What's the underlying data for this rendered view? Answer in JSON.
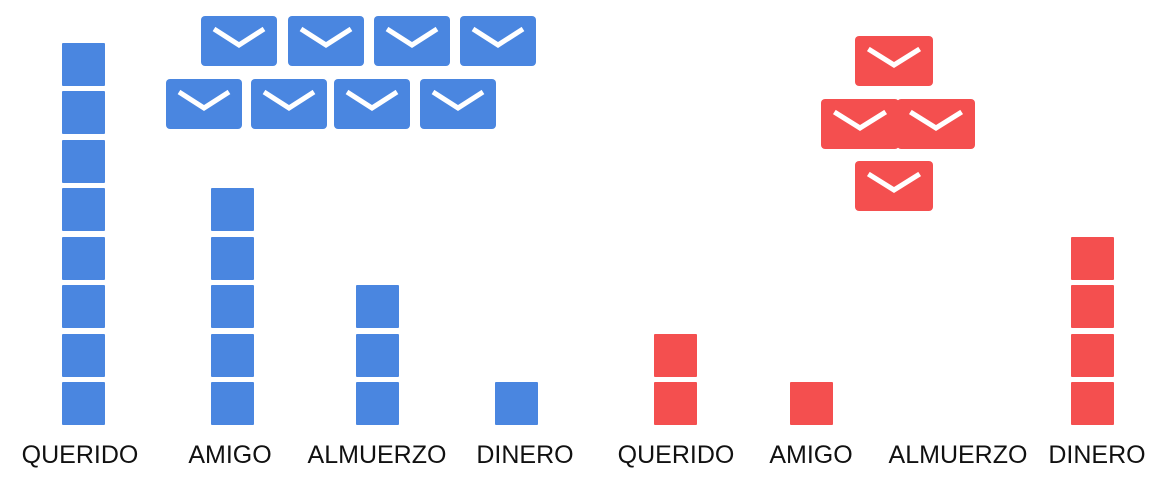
{
  "colors": {
    "blue": "#4a86e0",
    "red": "#f44f4f"
  },
  "groups": [
    {
      "color_key": "blue",
      "envelope_count": 8,
      "words": [
        {
          "label": "QUERIDO",
          "count": 8
        },
        {
          "label": "AMIGO",
          "count": 5
        },
        {
          "label": "ALMUERZO",
          "count": 3
        },
        {
          "label": "DINERO",
          "count": 1
        }
      ]
    },
    {
      "color_key": "red",
      "envelope_count": 4,
      "words": [
        {
          "label": "QUERIDO",
          "count": 2
        },
        {
          "label": "AMIGO",
          "count": 1
        },
        {
          "label": "ALMUERZO",
          "count": 0
        },
        {
          "label": "DINERO",
          "count": 4
        }
      ]
    }
  ]
}
